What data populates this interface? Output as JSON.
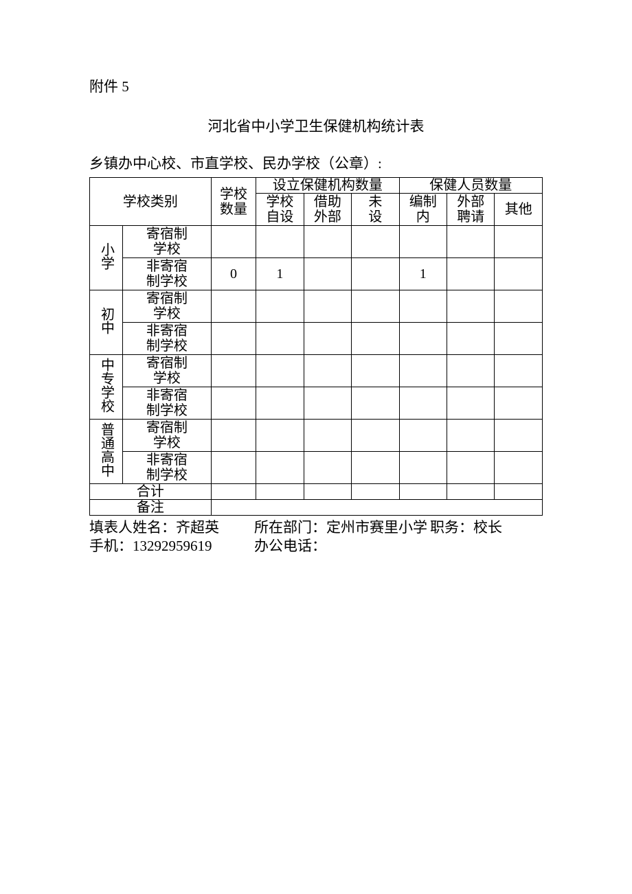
{
  "attachment": "附件 5",
  "title": "河北省中小学卫生保健机构统计表",
  "subtitle": "乡镇办中心校、市直学校、民办学校（公章）:",
  "headers": {
    "category": "学校类别",
    "school_count_l1": "学校",
    "school_count_l2": "数量",
    "org_group": "设立保健机构数量",
    "staff_group": "保健人员数量",
    "org_self_l1": "学校",
    "org_self_l2": "自设",
    "org_ext_l1": "借助",
    "org_ext_l2": "外部",
    "org_none_l1": "未",
    "org_none_l2": "设",
    "staff_in_l1": "编制",
    "staff_in_l2": "内",
    "staff_ext_l1": "外部",
    "staff_ext_l2": "聘请",
    "staff_other": "其他"
  },
  "categories": {
    "primary": "小学",
    "junior": "初中",
    "vocational": "中专学校",
    "senior": "普通高中",
    "boarding_l1": "寄宿制",
    "boarding_l2": "学校",
    "nonboarding_l1": "非寄宿",
    "nonboarding_l2": "制学校"
  },
  "total": "合计",
  "remark": "备注",
  "data": {
    "primary_nonboarding_count": "0",
    "primary_nonboarding_self": "1",
    "primary_nonboarding_in": "1"
  },
  "footer": {
    "name_label": "填表人姓名：",
    "name_value": "齐超英",
    "dept_label": "所在部门：",
    "dept_value": "定州市赛里小学",
    "role_label": "职务：",
    "role_value": "校长",
    "mobile_label": "手机：",
    "mobile_value": "13292959619",
    "office_label": "办公电话：",
    "office_value": ""
  }
}
